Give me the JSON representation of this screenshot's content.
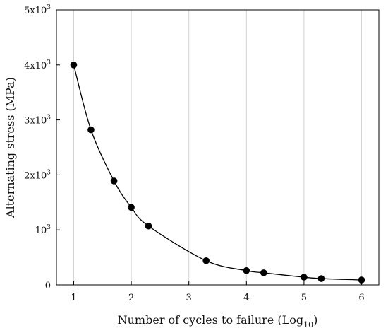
{
  "chart_data": {
    "type": "scatter",
    "xlabel": "Number of cycles to failure (Log",
    "xlabel_sub": "10",
    "xlabel_close": ")",
    "ylabel": "Alternating stress (MPa)",
    "xlim": [
      0.7,
      6.3
    ],
    "ylim": [
      0,
      5000
    ],
    "x_ticks": [
      1,
      2,
      3,
      4,
      5,
      6
    ],
    "x_tick_labels": [
      "1",
      "2",
      "3",
      "4",
      "5",
      "6"
    ],
    "y_ticks": [
      {
        "value": 0,
        "label": "0",
        "sup": ""
      },
      {
        "value": 1000,
        "label": "10",
        "sup": "3"
      },
      {
        "value": 2000,
        "label": "2x10",
        "sup": "3"
      },
      {
        "value": 3000,
        "label": "3x10",
        "sup": "3"
      },
      {
        "value": 4000,
        "label": "4x10",
        "sup": "3"
      },
      {
        "value": 5000,
        "label": "5x10",
        "sup": "3"
      }
    ],
    "grid": "vertical",
    "line": "smooth",
    "points": [
      {
        "x": 1.0,
        "y": 4000
      },
      {
        "x": 1.3,
        "y": 2820
      },
      {
        "x": 1.7,
        "y": 1890
      },
      {
        "x": 2.0,
        "y": 1410
      },
      {
        "x": 2.3,
        "y": 1070
      },
      {
        "x": 3.3,
        "y": 440
      },
      {
        "x": 4.0,
        "y": 260
      },
      {
        "x": 4.3,
        "y": 220
      },
      {
        "x": 5.0,
        "y": 140
      },
      {
        "x": 5.3,
        "y": 115
      },
      {
        "x": 6.0,
        "y": 90
      }
    ],
    "colors": {
      "marker": "#000000",
      "line": "#000000",
      "grid": "#d3d3d3",
      "frame": "#000000"
    }
  }
}
